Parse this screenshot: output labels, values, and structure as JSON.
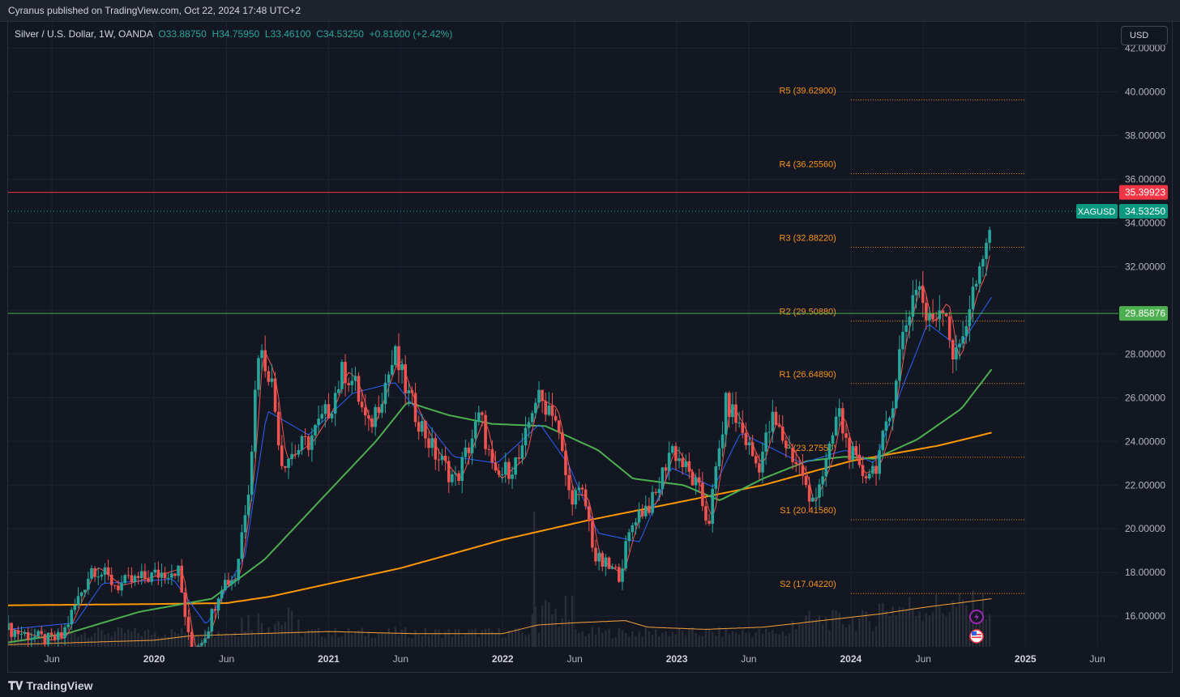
{
  "header": {
    "publish_line": "Cyranus published on TradingView.com, Oct 22, 2024 17:48 UTC+2"
  },
  "legend": {
    "symbol_line": "Silver / U.S. Dollar, 1W, OANDA",
    "open": "O33.88750",
    "high": "H34.75950",
    "low": "L33.46100",
    "close": "C34.53250",
    "change": "+0.81600 (+2.42%)"
  },
  "currency_button": "USD",
  "footer": {
    "brand": "TradingView"
  },
  "colors": {
    "up": "#26a69a",
    "down": "#ef5350",
    "pivot": "#f7931a",
    "resistance_line": "#f23645",
    "support_line": "#4caf50",
    "ma_short": "#2962ff",
    "ma_mid": "#4caf50",
    "ma_long": "#ff9800"
  },
  "icons": [
    "lightning-icon",
    "us-flag-icon",
    "tradingview-logo-icon"
  ],
  "chart_data": {
    "type": "candlestick",
    "symbol": "XAGUSD",
    "timeframe": "1W",
    "x_range": [
      "2019-03-01",
      "2025-07-15"
    ],
    "ylim": [
      14.6,
      43.2
    ],
    "y_ticks": [
      "42.00000",
      "40.00000",
      "38.00000",
      "36.00000",
      "34.00000",
      "32.00000",
      "30.00000",
      "28.00000",
      "26.00000",
      "24.00000",
      "22.00000",
      "20.00000",
      "18.00000",
      "16.00000"
    ],
    "x_ticks": [
      {
        "label": "Jun",
        "date": "2019-06-01"
      },
      {
        "label": "2020",
        "date": "2020-01-01"
      },
      {
        "label": "Jun",
        "date": "2020-06-01"
      },
      {
        "label": "2021",
        "date": "2021-01-01"
      },
      {
        "label": "Jun",
        "date": "2021-06-01"
      },
      {
        "label": "2022",
        "date": "2022-01-01"
      },
      {
        "label": "Jun",
        "date": "2022-06-01"
      },
      {
        "label": "2023",
        "date": "2023-01-01"
      },
      {
        "label": "Jun",
        "date": "2023-06-01"
      },
      {
        "label": "2024",
        "date": "2024-01-01"
      },
      {
        "label": "Jun",
        "date": "2024-06-01"
      },
      {
        "label": "2025",
        "date": "2025-01-01"
      },
      {
        "label": "Jun",
        "date": "2025-06-01"
      }
    ],
    "last_price": {
      "label": "XAGUSD",
      "value": "34.53250",
      "y": 34.5325
    },
    "horizontal_lines": [
      {
        "value": "35.39923",
        "y": 35.39923,
        "color": "#f23645"
      },
      {
        "value": "29.85876",
        "y": 29.85876,
        "color": "#4caf50"
      }
    ],
    "pivot_levels": [
      {
        "label": "R5 (39.62900)",
        "value": 39.629
      },
      {
        "label": "R4 (36.25560)",
        "value": 36.2556
      },
      {
        "label": "R3 (32.88220)",
        "value": 32.8822
      },
      {
        "label": "R2 (29.50880)",
        "value": 29.5088
      },
      {
        "label": "R1 (26.64890)",
        "value": 26.6489
      },
      {
        "label": "P (23.27550)",
        "value": 23.2755
      },
      {
        "label": "S1 (20.41560)",
        "value": 20.4156
      },
      {
        "label": "S2 (17.04220)",
        "value": 17.0422
      }
    ],
    "pivot_range": [
      "2024-01-01",
      "2024-12-31"
    ],
    "close_path": [
      [
        "2019-03-01",
        15.4
      ],
      [
        "2019-05-20",
        14.9
      ],
      [
        "2019-06-20",
        15.0
      ],
      [
        "2019-07-20",
        16.5
      ],
      [
        "2019-08-25",
        18.3
      ],
      [
        "2019-10-15",
        17.4
      ],
      [
        "2019-12-20",
        17.8
      ],
      [
        "2020-02-20",
        18.2
      ],
      [
        "2020-03-18",
        14.3
      ],
      [
        "2020-04-20",
        15.3
      ],
      [
        "2020-05-20",
        17.5
      ],
      [
        "2020-06-20",
        17.8
      ],
      [
        "2020-07-20",
        22.5
      ],
      [
        "2020-08-06",
        28.3
      ],
      [
        "2020-09-01",
        27.1
      ],
      [
        "2020-09-25",
        23.1
      ],
      [
        "2020-11-20",
        24.0
      ],
      [
        "2021-01-05",
        25.6
      ],
      [
        "2021-02-01",
        27.3
      ],
      [
        "2021-02-25",
        26.6
      ],
      [
        "2021-03-25",
        24.5
      ],
      [
        "2021-05-20",
        27.9
      ],
      [
        "2021-06-20",
        25.9
      ],
      [
        "2021-08-10",
        23.5
      ],
      [
        "2021-09-25",
        22.2
      ],
      [
        "2021-11-15",
        25.2
      ],
      [
        "2021-12-15",
        22.2
      ],
      [
        "2022-02-10",
        23.3
      ],
      [
        "2022-03-08",
        26.0
      ],
      [
        "2022-04-18",
        25.5
      ],
      [
        "2022-05-20",
        21.6
      ],
      [
        "2022-06-20",
        21.5
      ],
      [
        "2022-07-15",
        18.6
      ],
      [
        "2022-09-01",
        17.9
      ],
      [
        "2022-10-05",
        20.6
      ],
      [
        "2022-11-15",
        21.3
      ],
      [
        "2022-12-20",
        23.8
      ],
      [
        "2023-02-15",
        21.8
      ],
      [
        "2023-03-08",
        20.2
      ],
      [
        "2023-04-15",
        25.8
      ],
      [
        "2023-05-15",
        24.6
      ],
      [
        "2023-06-20",
        22.8
      ],
      [
        "2023-07-20",
        25.0
      ],
      [
        "2023-08-25",
        23.6
      ],
      [
        "2023-09-25",
        22.4
      ],
      [
        "2023-10-05",
        21.0
      ],
      [
        "2023-11-15",
        23.2
      ],
      [
        "2023-12-05",
        25.5
      ],
      [
        "2023-12-20",
        24.1
      ],
      [
        "2024-01-20",
        22.5
      ],
      [
        "2024-02-20",
        22.8
      ],
      [
        "2024-03-20",
        24.8
      ],
      [
        "2024-04-15",
        28.5
      ],
      [
        "2024-05-20",
        31.5
      ],
      [
        "2024-06-10",
        29.3
      ],
      [
        "2024-07-15",
        30.5
      ],
      [
        "2024-08-05",
        27.5
      ],
      [
        "2024-08-25",
        29.2
      ],
      [
        "2024-09-15",
        31.0
      ],
      [
        "2024-10-01",
        31.6
      ],
      [
        "2024-10-22",
        34.53
      ]
    ],
    "ma_short_path": [
      [
        "2019-03-01",
        15.4
      ],
      [
        "2019-07-20",
        15.7
      ],
      [
        "2019-09-15",
        17.5
      ],
      [
        "2020-02-10",
        17.7
      ],
      [
        "2020-04-20",
        15.6
      ],
      [
        "2020-07-10",
        18.8
      ],
      [
        "2020-08-25",
        25.4
      ],
      [
        "2020-11-20",
        24.3
      ],
      [
        "2021-02-20",
        26.2
      ],
      [
        "2021-05-20",
        26.7
      ],
      [
        "2021-09-20",
        23.3
      ],
      [
        "2021-12-20",
        23.0
      ],
      [
        "2022-03-20",
        24.8
      ],
      [
        "2022-05-20",
        22.9
      ],
      [
        "2022-07-20",
        19.8
      ],
      [
        "2022-10-15",
        19.4
      ],
      [
        "2022-12-20",
        22.8
      ],
      [
        "2023-03-20",
        21.9
      ],
      [
        "2023-05-15",
        24.4
      ],
      [
        "2023-09-20",
        23.0
      ],
      [
        "2023-12-20",
        23.6
      ],
      [
        "2024-02-20",
        23.0
      ],
      [
        "2024-04-15",
        26.3
      ],
      [
        "2024-06-10",
        29.4
      ],
      [
        "2024-08-15",
        28.3
      ],
      [
        "2024-10-22",
        30.6
      ]
    ],
    "ma_mid_path": [
      [
        "2019-03-01",
        14.8
      ],
      [
        "2019-07-01",
        15.2
      ],
      [
        "2019-12-01",
        16.2
      ],
      [
        "2020-05-01",
        16.8
      ],
      [
        "2020-08-20",
        18.6
      ],
      [
        "2020-12-10",
        21.2
      ],
      [
        "2021-04-10",
        24.0
      ],
      [
        "2021-06-15",
        25.8
      ],
      [
        "2021-09-10",
        25.2
      ],
      [
        "2021-12-10",
        24.8
      ],
      [
        "2022-04-01",
        24.7
      ],
      [
        "2022-07-20",
        23.6
      ],
      [
        "2022-10-01",
        22.3
      ],
      [
        "2023-01-15",
        22.0
      ],
      [
        "2023-04-01",
        21.3
      ],
      [
        "2023-07-01",
        22.3
      ],
      [
        "2023-10-01",
        23.1
      ],
      [
        "2023-12-20",
        23.3
      ],
      [
        "2024-02-20",
        23.2
      ],
      [
        "2024-05-20",
        24.1
      ],
      [
        "2024-08-20",
        25.5
      ],
      [
        "2024-10-22",
        27.3
      ]
    ],
    "ma_long_path": [
      [
        "2019-03-01",
        16.5
      ],
      [
        "2019-12-01",
        16.55
      ],
      [
        "2020-06-01",
        16.6
      ],
      [
        "2020-09-01",
        16.9
      ],
      [
        "2021-06-01",
        18.2
      ],
      [
        "2022-01-01",
        19.5
      ],
      [
        "2022-07-01",
        20.4
      ],
      [
        "2023-01-01",
        21.2
      ],
      [
        "2023-07-01",
        22.0
      ],
      [
        "2024-01-01",
        23.1
      ],
      [
        "2024-07-01",
        23.8
      ],
      [
        "2024-10-22",
        24.4
      ]
    ],
    "volume_ma_path": [
      [
        "2019-03-01",
        14.7
      ],
      [
        "2020-01-01",
        14.9
      ],
      [
        "2020-03-15",
        15.1
      ],
      [
        "2020-08-01",
        15.2
      ],
      [
        "2021-01-01",
        15.3
      ],
      [
        "2021-07-01",
        15.2
      ],
      [
        "2022-01-01",
        15.2
      ],
      [
        "2022-03-15",
        15.6
      ],
      [
        "2022-06-01",
        15.7
      ],
      [
        "2022-09-15",
        15.8
      ],
      [
        "2022-11-01",
        15.5
      ],
      [
        "2023-03-01",
        15.4
      ],
      [
        "2023-07-01",
        15.5
      ],
      [
        "2023-11-01",
        15.8
      ],
      [
        "2024-03-01",
        16.1
      ],
      [
        "2024-06-01",
        16.4
      ],
      [
        "2024-10-22",
        16.8
      ]
    ]
  }
}
